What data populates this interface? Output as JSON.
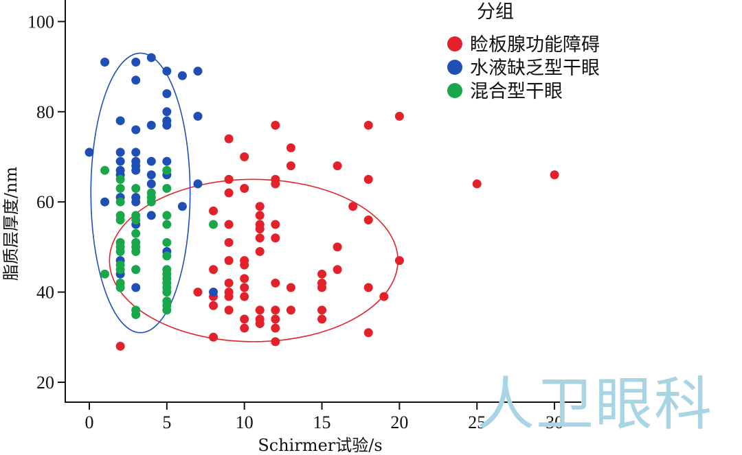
{
  "chart_data": {
    "type": "scatter",
    "xlabel": "Schirmer试验/s",
    "ylabel": "脂质层厚度/nm",
    "xlim": [
      -1.5,
      31
    ],
    "ylim": [
      15,
      104
    ],
    "xticks": [
      0,
      5,
      10,
      15,
      20,
      25,
      30
    ],
    "yticks": [
      20,
      40,
      60,
      80,
      100
    ],
    "grid": false,
    "legend": {
      "title": "分组",
      "position": "top-right"
    },
    "series": [
      {
        "name": "睑板腺功能障碍",
        "color": "#e3212b",
        "points": [
          [
            2,
            28
          ],
          [
            7,
            40
          ],
          [
            8,
            58
          ],
          [
            8,
            45
          ],
          [
            8,
            39
          ],
          [
            8,
            37
          ],
          [
            8,
            30
          ],
          [
            9,
            74
          ],
          [
            9,
            65
          ],
          [
            9,
            62
          ],
          [
            9,
            55
          ],
          [
            9,
            51
          ],
          [
            9,
            47
          ],
          [
            9,
            42
          ],
          [
            9,
            40
          ],
          [
            9,
            39
          ],
          [
            9,
            36
          ],
          [
            10,
            70
          ],
          [
            10,
            63
          ],
          [
            10,
            47
          ],
          [
            10,
            46
          ],
          [
            10,
            43
          ],
          [
            10,
            41
          ],
          [
            10,
            39
          ],
          [
            10,
            34
          ],
          [
            10,
            32
          ],
          [
            11,
            59
          ],
          [
            11,
            57
          ],
          [
            11,
            55
          ],
          [
            11,
            54
          ],
          [
            11,
            52
          ],
          [
            11,
            49
          ],
          [
            11,
            36
          ],
          [
            11,
            34
          ],
          [
            11,
            33
          ],
          [
            12,
            77
          ],
          [
            12,
            65
          ],
          [
            12,
            64
          ],
          [
            12,
            55
          ],
          [
            12,
            52
          ],
          [
            12,
            42
          ],
          [
            12,
            36
          ],
          [
            12,
            34
          ],
          [
            12,
            32
          ],
          [
            12,
            29
          ],
          [
            13,
            72
          ],
          [
            13,
            68
          ],
          [
            13,
            41
          ],
          [
            13,
            36
          ],
          [
            15,
            44
          ],
          [
            15,
            42
          ],
          [
            15,
            41
          ],
          [
            15,
            36
          ],
          [
            15,
            34
          ],
          [
            16,
            68
          ],
          [
            16,
            50
          ],
          [
            16,
            45
          ],
          [
            17,
            59
          ],
          [
            18,
            77
          ],
          [
            18,
            65
          ],
          [
            18,
            56
          ],
          [
            18,
            41
          ],
          [
            18,
            31
          ],
          [
            19,
            39
          ],
          [
            20,
            79
          ],
          [
            20,
            47
          ],
          [
            25,
            64
          ],
          [
            30,
            66
          ]
        ]
      },
      {
        "name": "水液缺乏型干眼",
        "color": "#1f4fb5",
        "points": [
          [
            0,
            71
          ],
          [
            1,
            91
          ],
          [
            1,
            60
          ],
          [
            2,
            78
          ],
          [
            2,
            71
          ],
          [
            2,
            69
          ],
          [
            2,
            67
          ],
          [
            2,
            66
          ],
          [
            2,
            61
          ],
          [
            2,
            47
          ],
          [
            2,
            44
          ],
          [
            3,
            91
          ],
          [
            3,
            87
          ],
          [
            3,
            76
          ],
          [
            3,
            71
          ],
          [
            3,
            69
          ],
          [
            3,
            68
          ],
          [
            3,
            67
          ],
          [
            3,
            61
          ],
          [
            3,
            60
          ],
          [
            3,
            55
          ],
          [
            3,
            45
          ],
          [
            3,
            41
          ],
          [
            4,
            92
          ],
          [
            4,
            77
          ],
          [
            4,
            69
          ],
          [
            4,
            66
          ],
          [
            4,
            64
          ],
          [
            4,
            57
          ],
          [
            5,
            89
          ],
          [
            5,
            84
          ],
          [
            5,
            80
          ],
          [
            5,
            78
          ],
          [
            5,
            77
          ],
          [
            5,
            69
          ],
          [
            5,
            66
          ],
          [
            5,
            49
          ],
          [
            6,
            88
          ],
          [
            6,
            59
          ],
          [
            7,
            89
          ],
          [
            7,
            79
          ],
          [
            7,
            64
          ],
          [
            8,
            40
          ]
        ]
      },
      {
        "name": "混合型干眼",
        "color": "#1aa64b",
        "points": [
          [
            1,
            67
          ],
          [
            1,
            44
          ],
          [
            2,
            65
          ],
          [
            2,
            63
          ],
          [
            2,
            60
          ],
          [
            2,
            57
          ],
          [
            2,
            56
          ],
          [
            2,
            51
          ],
          [
            2,
            50
          ],
          [
            2,
            49
          ],
          [
            2,
            46
          ],
          [
            2,
            45
          ],
          [
            2,
            42
          ],
          [
            2,
            41
          ],
          [
            3,
            63
          ],
          [
            3,
            57
          ],
          [
            3,
            56
          ],
          [
            3,
            53
          ],
          [
            3,
            51
          ],
          [
            3,
            50
          ],
          [
            3,
            49
          ],
          [
            3,
            45
          ],
          [
            3,
            36
          ],
          [
            3,
            35
          ],
          [
            4,
            62
          ],
          [
            4,
            61
          ],
          [
            4,
            60
          ],
          [
            5,
            67
          ],
          [
            5,
            63
          ],
          [
            5,
            57
          ],
          [
            5,
            55
          ],
          [
            5,
            51
          ],
          [
            5,
            48
          ],
          [
            5,
            45
          ],
          [
            5,
            44
          ],
          [
            5,
            43
          ],
          [
            5,
            42
          ],
          [
            5,
            41
          ],
          [
            5,
            40
          ],
          [
            5,
            38
          ],
          [
            5,
            37
          ],
          [
            5,
            36
          ],
          [
            8,
            55
          ]
        ]
      }
    ],
    "annotations": [
      {
        "shape": "ellipse",
        "series": "睑板腺功能障碍",
        "center": [
          10.6,
          47
        ],
        "rx": 9.3,
        "ry": 18
      },
      {
        "shape": "ellipse",
        "series": "水液缺乏型干眼",
        "center": [
          3.3,
          62
        ],
        "rx": 3.2,
        "ry": 31
      }
    ]
  },
  "watermark": "人卫眼科"
}
